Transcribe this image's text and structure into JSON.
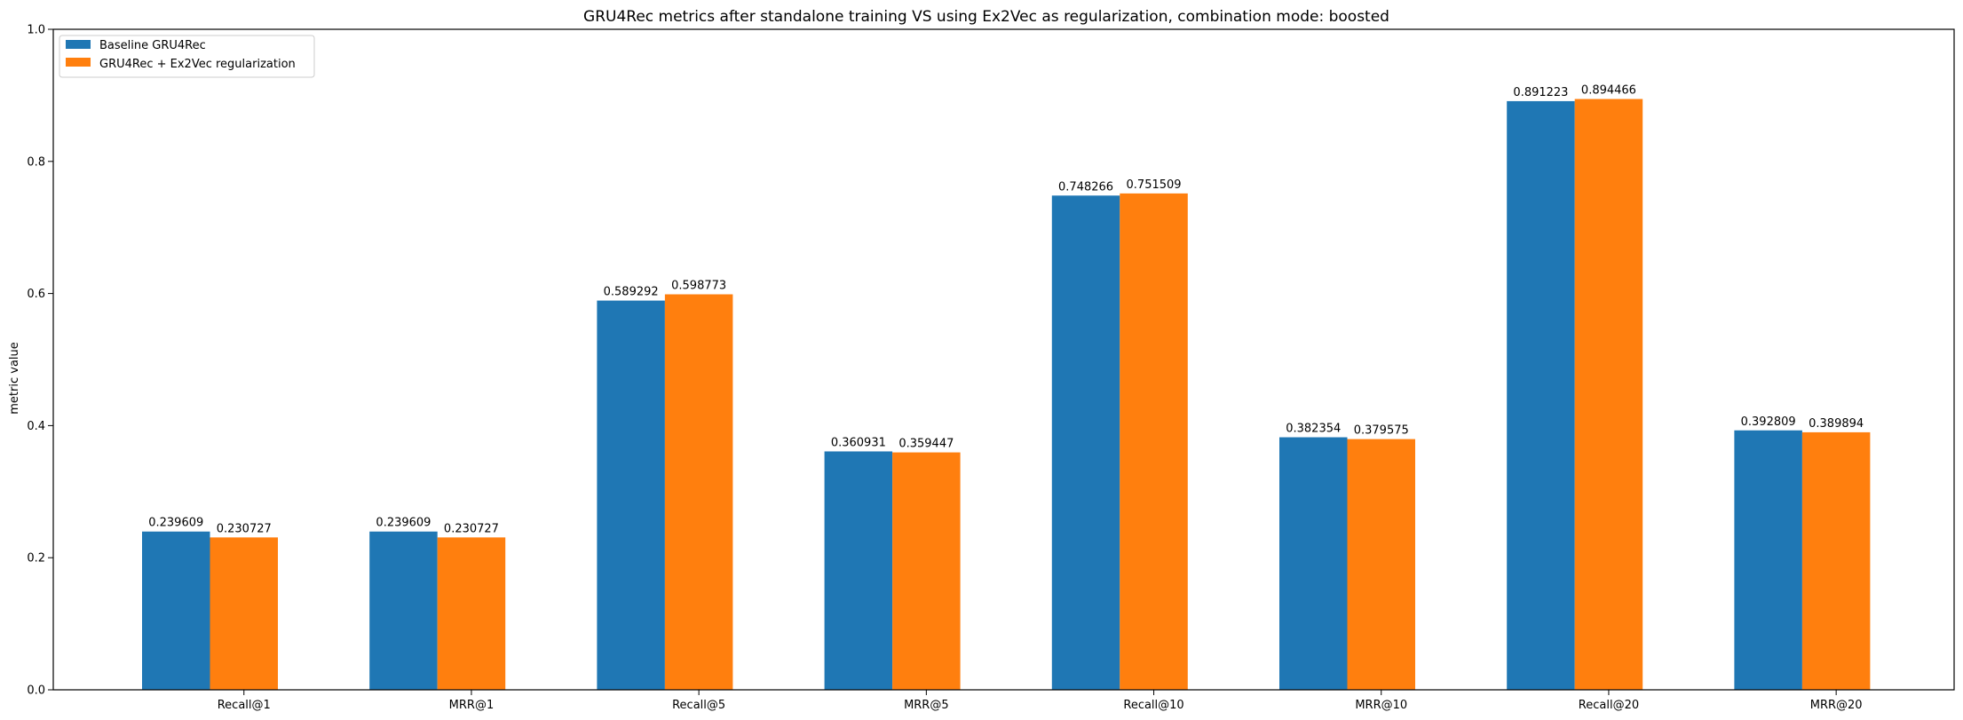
{
  "chart_data": {
    "type": "bar",
    "title": "GRU4Rec metrics after standalone training VS using Ex2Vec as regularization, combination mode: boosted",
    "xlabel": "",
    "ylabel": "metric value",
    "ylim": [
      0,
      1.0
    ],
    "yticks": [
      "0.0",
      "0.2",
      "0.4",
      "0.6",
      "0.8",
      "1.0"
    ],
    "grid": false,
    "legend_position": "top-left",
    "categories": [
      "Recall@1",
      "MRR@1",
      "Recall@5",
      "MRR@5",
      "Recall@10",
      "MRR@10",
      "Recall@20",
      "MRR@20"
    ],
    "series": [
      {
        "name": "Baseline GRU4Rec",
        "color": "#1f77b4",
        "values": [
          0.239609,
          0.239609,
          0.589292,
          0.360931,
          0.748266,
          0.382354,
          0.891223,
          0.392809
        ],
        "labels": [
          "0.239609",
          "0.239609",
          "0.589292",
          "0.360931",
          "0.748266",
          "0.382354",
          "0.891223",
          "0.392809"
        ]
      },
      {
        "name": "GRU4Rec + Ex2Vec regularization",
        "color": "#ff7f0e",
        "values": [
          0.230727,
          0.230727,
          0.598773,
          0.359447,
          0.751509,
          0.379575,
          0.894466,
          0.389894
        ],
        "labels": [
          "0.230727",
          "0.230727",
          "0.598773",
          "0.359447",
          "0.751509",
          "0.379575",
          "0.894466",
          "0.389894"
        ]
      }
    ]
  }
}
